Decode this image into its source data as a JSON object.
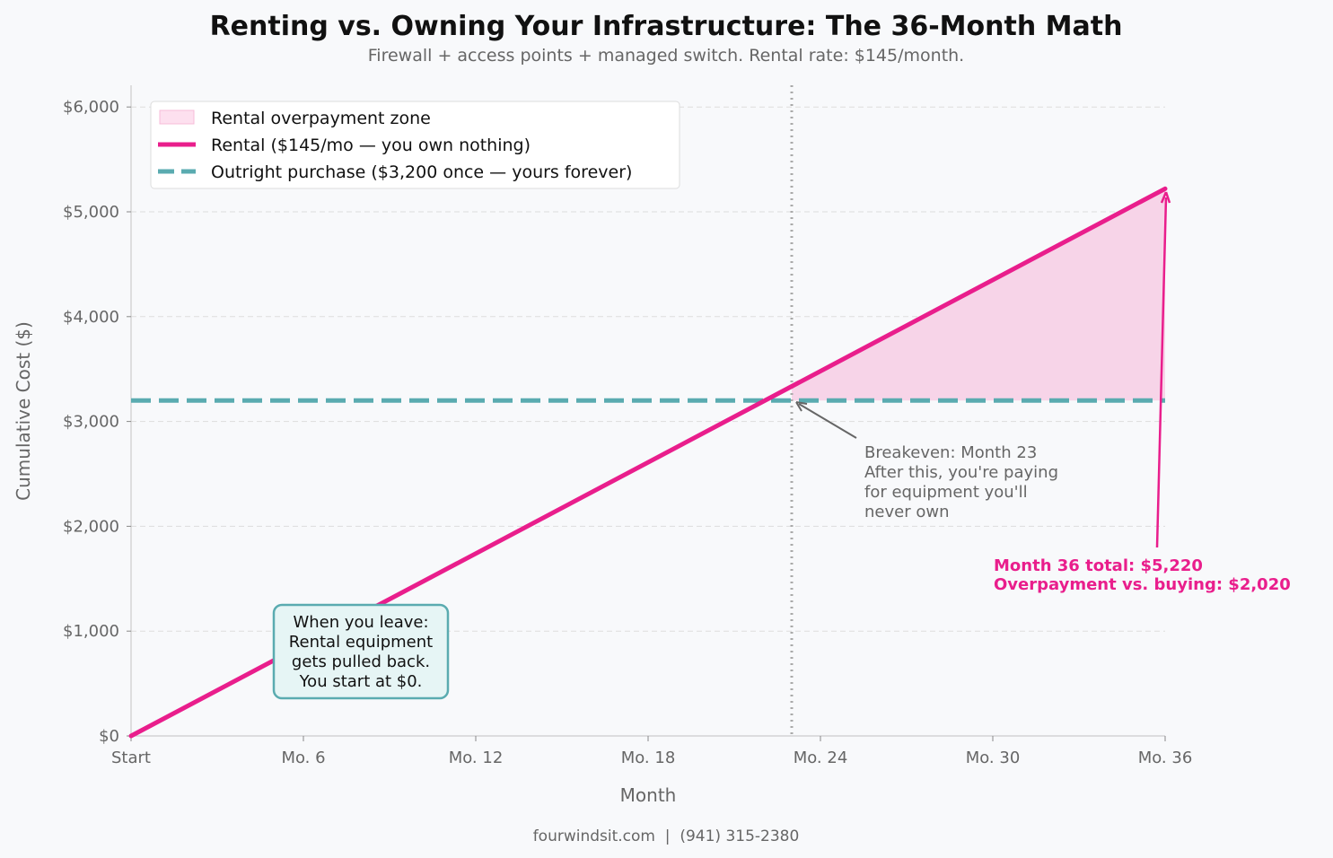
{
  "chart_data": {
    "type": "line",
    "title": "Renting vs. Owning Your Infrastructure: The 36-Month Math",
    "subtitle": "Firewall + access points + managed switch. Rental rate: $145/month.",
    "xlabel": "Month",
    "ylabel": "Cumulative Cost ($)",
    "xlim": [
      0,
      36
    ],
    "ylim": [
      0,
      6200
    ],
    "x_ticks": [
      0,
      6,
      12,
      18,
      24,
      30,
      36
    ],
    "x_tick_labels": [
      "Start",
      "Mo. 6",
      "Mo. 12",
      "Mo. 18",
      "Mo. 24",
      "Mo. 30",
      "Mo. 36"
    ],
    "y_ticks": [
      0,
      1000,
      2000,
      3000,
      4000,
      5000,
      6000
    ],
    "y_tick_labels": [
      "$0",
      "$1,000",
      "$2,000",
      "$3,000",
      "$4,000",
      "$5,000",
      "$6,000"
    ],
    "grid": "y, dashed",
    "legend_placement": "top-left",
    "series": [
      {
        "name": "Rental ($145/mo — you own nothing)",
        "style": "solid",
        "color": "#e91e8c",
        "x": [
          0,
          36
        ],
        "y": [
          0,
          5220
        ]
      },
      {
        "name": "Outright purchase ($3,200 once — yours forever)",
        "style": "dashed",
        "color": "#5aabb0",
        "x": [
          0,
          36
        ],
        "y": [
          3200,
          3200
        ]
      }
    ],
    "fill": {
      "name": "Rental overpayment zone",
      "color": "#f7d4e8",
      "x_from": 23,
      "x_to": 36
    },
    "breakeven_month": 23,
    "annotations": {
      "breakeven": [
        "Breakeven: Month 23",
        "After this, you're paying",
        "for equipment you'll",
        "never own"
      ],
      "month36": [
        "Month 36 total: $5,220",
        "Overpayment vs. buying: $2,020"
      ],
      "leave_box": [
        "When you leave:",
        "Rental equipment",
        "gets pulled back.",
        "You start at $0."
      ]
    }
  },
  "footer": "fourwindsit.com  |  (941) 315-2380"
}
